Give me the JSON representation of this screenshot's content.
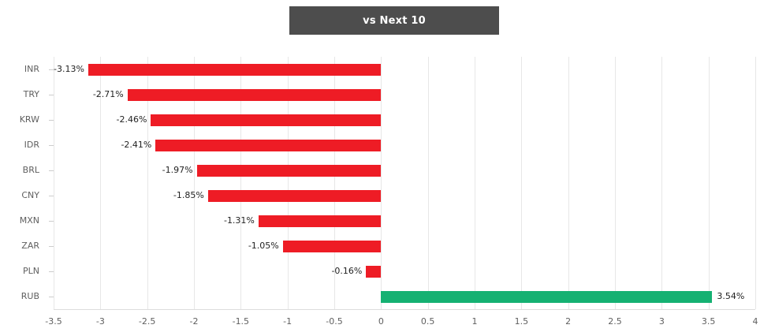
{
  "title": "vs Next 10",
  "colors": {
    "title_bg": "#4d4d4d",
    "title_fg": "#ffffff",
    "negative_bar": "#ee1c25",
    "positive_bar": "#15b172",
    "gridline": "#e7e7e7",
    "axis_line": "#dddddd",
    "tick_mark": "#cccccc",
    "axis_text": "#5f5f5f",
    "value_text": "#222222"
  },
  "chart_data": {
    "type": "bar",
    "orientation": "horizontal",
    "title": "vs Next 10",
    "xlabel": "",
    "ylabel": "",
    "grid": true,
    "legend": false,
    "xlim": [
      -3.5,
      4
    ],
    "categories": [
      "INR",
      "TRY",
      "KRW",
      "IDR",
      "BRL",
      "CNY",
      "MXN",
      "ZAR",
      "PLN",
      "RUB"
    ],
    "values": [
      -3.13,
      -2.71,
      -2.46,
      -2.41,
      -1.97,
      -1.85,
      -1.31,
      -1.05,
      -0.16,
      3.54
    ],
    "value_labels": [
      "-3.13%",
      "-2.71%",
      "-2.46%",
      "-2.41%",
      "-1.97%",
      "-1.85%",
      "-1.31%",
      "-1.05%",
      "-0.16%",
      "3.54%"
    ],
    "ticks": [
      -3.5,
      -3,
      -2.5,
      -2,
      -1.5,
      -1,
      -0.5,
      0,
      0.5,
      1,
      1.5,
      2,
      2.5,
      3,
      3.5,
      4
    ],
    "tick_labels": [
      "-3.5",
      "-3",
      "-2.5",
      "-2",
      "-1.5",
      "-1",
      "-0.5",
      "0",
      "0.5",
      "1",
      "1.5",
      "2",
      "2.5",
      "3",
      "3.5",
      "4"
    ]
  }
}
